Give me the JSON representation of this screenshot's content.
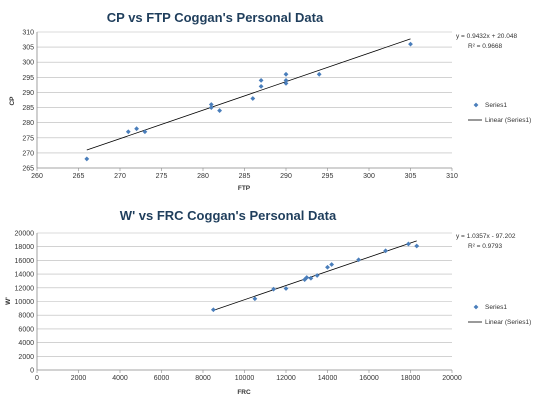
{
  "chart_data": [
    {
      "type": "scatter",
      "title": "CP vs FTP Coggan's Personal Data",
      "xlabel": "FTP",
      "ylabel": "CP",
      "xlim": [
        260,
        310
      ],
      "ylim": [
        265,
        310
      ],
      "xticks": [
        260,
        265,
        270,
        275,
        280,
        285,
        290,
        295,
        300,
        305,
        310
      ],
      "yticks": [
        265,
        270,
        275,
        280,
        285,
        290,
        295,
        300,
        305,
        310
      ],
      "grid": "horizontal",
      "legend_position": "right",
      "series": [
        {
          "name": "Series1",
          "color": "#4a7ebb",
          "points": [
            [
              266,
              268
            ],
            [
              271,
              277
            ],
            [
              272,
              278
            ],
            [
              273,
              277
            ],
            [
              281,
              286
            ],
            [
              281,
              285
            ],
            [
              282,
              284
            ],
            [
              286,
              288
            ],
            [
              287,
              294
            ],
            [
              287,
              292
            ],
            [
              290,
              296
            ],
            [
              290,
              294
            ],
            [
              290,
              293
            ],
            [
              294,
              296
            ],
            [
              305,
              306
            ]
          ]
        }
      ],
      "trendline": {
        "name": "Linear (Series1)",
        "slope": 0.9432,
        "intercept": 20.048,
        "x_range": [
          266,
          305
        ],
        "equation": "y = 0.9432x + 20.048",
        "r2": "R² = 0.9668"
      }
    },
    {
      "type": "scatter",
      "title": "W' vs FRC Coggan's Personal Data",
      "xlabel": "FRC",
      "ylabel": "W'",
      "xlim": [
        0,
        20000
      ],
      "ylim": [
        0,
        20000
      ],
      "xticks": [
        0,
        2000,
        4000,
        6000,
        8000,
        10000,
        12000,
        14000,
        16000,
        18000,
        20000
      ],
      "yticks": [
        0,
        2000,
        4000,
        6000,
        8000,
        10000,
        12000,
        14000,
        16000,
        18000,
        20000
      ],
      "grid": "horizontal",
      "legend_position": "right",
      "series": [
        {
          "name": "Series1",
          "color": "#4a7ebb",
          "points": [
            [
              8500,
              8800
            ],
            [
              10500,
              10400
            ],
            [
              11400,
              11800
            ],
            [
              12000,
              11900
            ],
            [
              12900,
              13200
            ],
            [
              13000,
              13500
            ],
            [
              13200,
              13400
            ],
            [
              13500,
              13800
            ],
            [
              14000,
              15000
            ],
            [
              14200,
              15400
            ],
            [
              15500,
              16100
            ],
            [
              16800,
              17400
            ],
            [
              17900,
              18400
            ],
            [
              18300,
              18100
            ]
          ]
        }
      ],
      "trendline": {
        "name": "Linear (Series1)",
        "slope": 1.0357,
        "intercept": -97.202,
        "x_range": [
          8500,
          18300
        ],
        "equation": "y = 1.0357x - 97.202",
        "r2": "R² = 0.9793"
      }
    }
  ]
}
